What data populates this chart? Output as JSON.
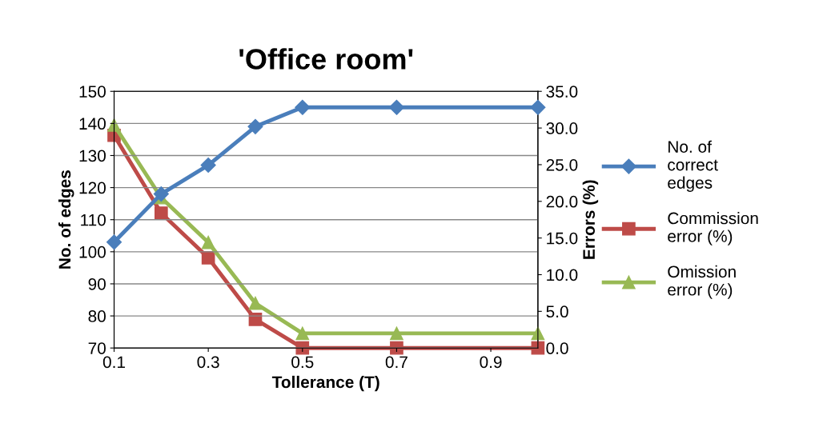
{
  "chart_data": {
    "type": "line",
    "title": "'Office room'",
    "xlabel": "Tollerance (T)",
    "ylabel": "No. of edges",
    "y2label": "Errors (%)",
    "x": [
      0.1,
      0.2,
      0.3,
      0.4,
      0.5,
      0.7,
      1.0
    ],
    "series": [
      {
        "name": "No. of correct edges",
        "color": "#4a7ebb",
        "marker": "diamond",
        "values": [
          103,
          118,
          127,
          139,
          145,
          145,
          145
        ]
      },
      {
        "name": "Commission error (%)",
        "color": "#be4b48",
        "marker": "square",
        "axis": "y2",
        "values": [
          29.0,
          18.4,
          12.3,
          3.9,
          0,
          0,
          0
        ]
      },
      {
        "name": "Omission error (%)",
        "color": "#98b954",
        "marker": "triangle",
        "axis": "y2",
        "values": [
          30.4,
          20.5,
          14.4,
          6.1,
          2.0,
          2.0,
          2.0
        ]
      }
    ],
    "xlim": [
      0.1,
      1.0
    ],
    "xticks": [
      0.1,
      0.3,
      0.5,
      0.7,
      0.9
    ],
    "ylim": [
      70,
      150
    ],
    "yticks": [
      70,
      80,
      90,
      100,
      110,
      120,
      130,
      140,
      150
    ],
    "y2lim": [
      0,
      35
    ],
    "y2ticks": [
      {
        "value": 0,
        "label": "0.0"
      },
      {
        "value": 5,
        "label": "5.0"
      },
      {
        "value": 10,
        "label": "10.0"
      },
      {
        "value": 15,
        "label": "15.0"
      },
      {
        "value": 20,
        "label": "20.0"
      },
      {
        "value": 25,
        "label": "25.0"
      },
      {
        "value": 30,
        "label": "30.0"
      },
      {
        "value": 35,
        "label": "35.0"
      }
    ],
    "grid": "y",
    "legend": "right"
  }
}
